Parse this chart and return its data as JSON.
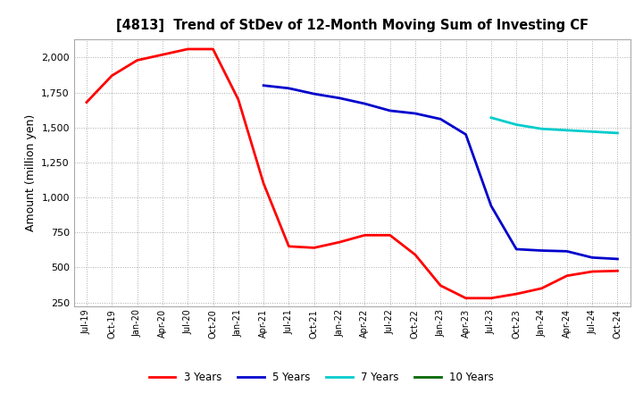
{
  "title": "[4813]  Trend of StDev of 12-Month Moving Sum of Investing CF",
  "ylabel": "Amount (million yen)",
  "background_color": "#ffffff",
  "grid_color": "#aaaaaa",
  "series": {
    "3 Years": {
      "color": "#ff0000",
      "dates": [
        "Jul-19",
        "Oct-19",
        "Jan-20",
        "Apr-20",
        "Jul-20",
        "Oct-20",
        "Jan-21",
        "Apr-21",
        "Jul-21",
        "Oct-21",
        "Jan-22",
        "Apr-22",
        "Jul-22",
        "Oct-22",
        "Jan-23",
        "Apr-23",
        "Jul-23",
        "Oct-23",
        "Jan-24",
        "Apr-24",
        "Jul-24",
        "Oct-24"
      ],
      "values": [
        1680,
        1870,
        1980,
        2020,
        2060,
        2060,
        1700,
        1100,
        650,
        640,
        680,
        730,
        730,
        590,
        370,
        280,
        280,
        310,
        350,
        440,
        470,
        475
      ]
    },
    "5 Years": {
      "color": "#0000cc",
      "dates": [
        "Apr-21",
        "Jul-21",
        "Oct-21",
        "Jan-22",
        "Apr-22",
        "Jul-22",
        "Oct-22",
        "Jan-23",
        "Apr-23",
        "Jul-23",
        "Oct-23",
        "Jan-24",
        "Apr-24",
        "Jul-24",
        "Oct-24"
      ],
      "values": [
        1800,
        1780,
        1740,
        1710,
        1670,
        1620,
        1600,
        1560,
        1450,
        940,
        630,
        620,
        615,
        570,
        560
      ]
    },
    "7 Years": {
      "color": "#00cccc",
      "dates": [
        "Jul-23",
        "Oct-23",
        "Jan-24",
        "Apr-24",
        "Jul-24",
        "Oct-24"
      ],
      "values": [
        1570,
        1520,
        1490,
        1480,
        1470,
        1460
      ]
    },
    "10 Years": {
      "color": "#006600",
      "dates": [],
      "values": []
    }
  },
  "yticks": [
    250,
    500,
    750,
    1000,
    1250,
    1500,
    1750,
    2000
  ],
  "ylim": [
    220,
    2130
  ],
  "xtick_labels": [
    "Jul-19",
    "Oct-19",
    "Jan-20",
    "Apr-20",
    "Jul-20",
    "Oct-20",
    "Jan-21",
    "Apr-21",
    "Jul-21",
    "Oct-21",
    "Jan-22",
    "Apr-22",
    "Jul-22",
    "Oct-22",
    "Jan-23",
    "Apr-23",
    "Jul-23",
    "Oct-23",
    "Jan-24",
    "Apr-24",
    "Jul-24",
    "Oct-24"
  ]
}
